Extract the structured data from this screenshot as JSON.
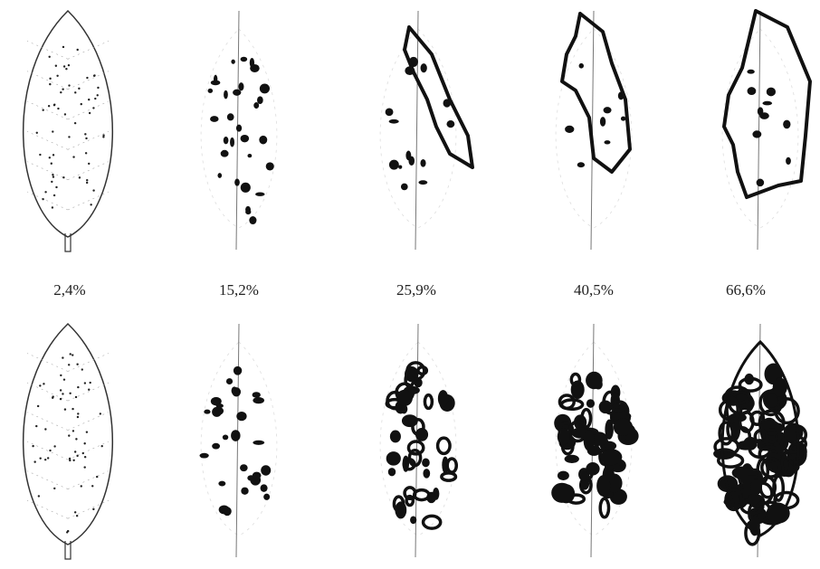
{
  "labels": [
    "2,4%",
    "15,2%",
    "25,9%",
    "40,5%",
    "66,6%"
  ]
}
